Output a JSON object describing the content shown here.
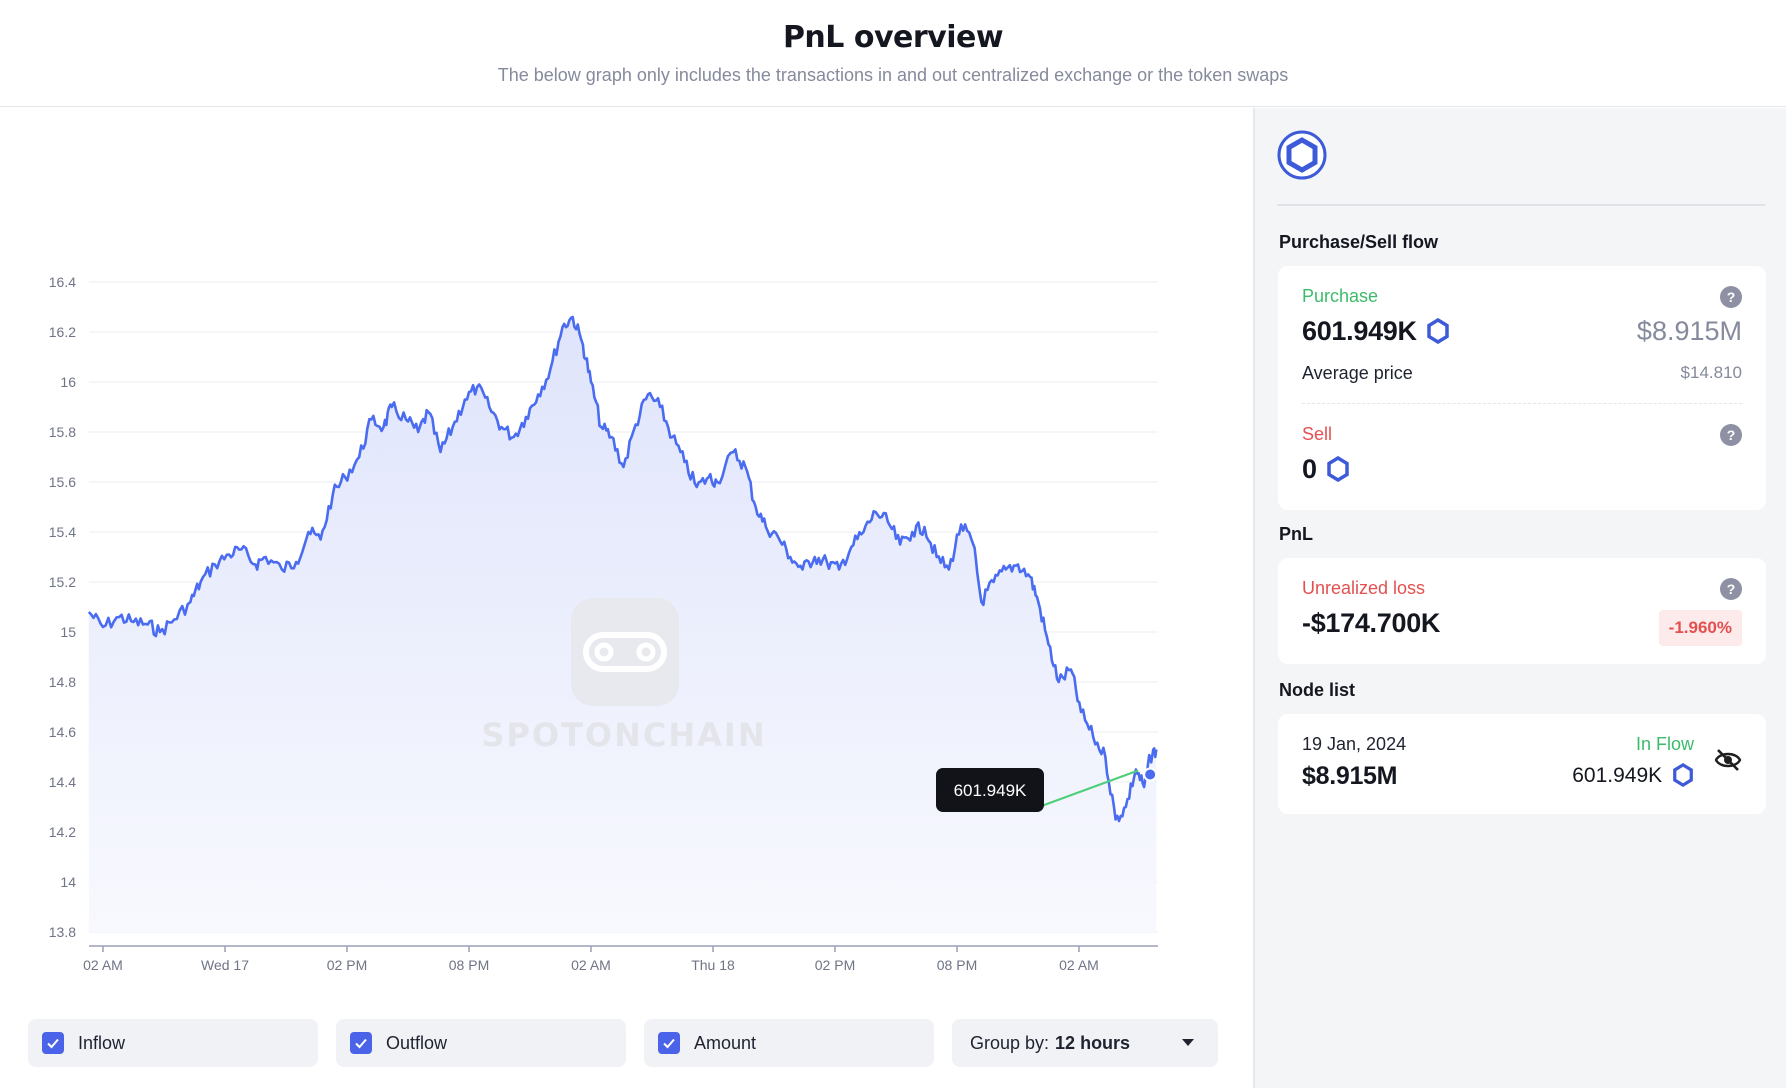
{
  "header": {
    "title": "PnL overview",
    "subtitle": "The below graph only includes the transactions in and out centralized exchange or the token swaps"
  },
  "chart_data": {
    "type": "area",
    "watermark": "SPOTONCHAIN",
    "y_ticks": [
      "16.4",
      "16.2",
      "16",
      "15.8",
      "15.6",
      "15.4",
      "15.2",
      "15",
      "14.8",
      "14.6",
      "14.4",
      "14.2",
      "14",
      "13.8"
    ],
    "ylim": [
      13.8,
      16.4
    ],
    "x_ticks": [
      "02 AM",
      "Wed 17",
      "02 PM",
      "08 PM",
      "02 AM",
      "Thu 18",
      "02 PM",
      "08 PM",
      "02 AM"
    ],
    "x_hours": [
      0,
      6,
      12,
      18,
      24,
      30,
      36,
      42,
      48
    ],
    "xlim": [
      -0.7,
      51.8
    ],
    "series": [
      {
        "points": [
          [
            -0.7,
            15.08
          ],
          [
            0.0,
            15.02
          ],
          [
            0.8,
            15.06
          ],
          [
            1.5,
            15.04
          ],
          [
            2.2,
            15.03
          ],
          [
            2.8,
            15.0
          ],
          [
            3.5,
            15.05
          ],
          [
            4.3,
            15.12
          ],
          [
            4.8,
            15.2
          ],
          [
            5.5,
            15.27
          ],
          [
            6.2,
            15.31
          ],
          [
            6.8,
            15.33
          ],
          [
            7.5,
            15.27
          ],
          [
            8.0,
            15.3
          ],
          [
            8.8,
            15.25
          ],
          [
            9.5,
            15.28
          ],
          [
            10.1,
            15.4
          ],
          [
            10.7,
            15.37
          ],
          [
            11.3,
            15.55
          ],
          [
            11.9,
            15.62
          ],
          [
            12.6,
            15.7
          ],
          [
            13.2,
            15.85
          ],
          [
            13.8,
            15.82
          ],
          [
            14.2,
            15.9
          ],
          [
            14.9,
            15.85
          ],
          [
            15.5,
            15.8
          ],
          [
            16.0,
            15.88
          ],
          [
            16.6,
            15.72
          ],
          [
            17.2,
            15.82
          ],
          [
            17.8,
            15.93
          ],
          [
            18.4,
            15.98
          ],
          [
            19.0,
            15.9
          ],
          [
            19.6,
            15.82
          ],
          [
            20.2,
            15.78
          ],
          [
            20.8,
            15.86
          ],
          [
            21.4,
            15.95
          ],
          [
            22.0,
            16.05
          ],
          [
            22.6,
            16.22
          ],
          [
            23.1,
            16.26
          ],
          [
            23.6,
            16.15
          ],
          [
            24.0,
            16.0
          ],
          [
            24.5,
            15.82
          ],
          [
            25.0,
            15.78
          ],
          [
            25.6,
            15.66
          ],
          [
            26.2,
            15.83
          ],
          [
            26.8,
            15.95
          ],
          [
            27.4,
            15.9
          ],
          [
            28.0,
            15.78
          ],
          [
            28.6,
            15.68
          ],
          [
            29.2,
            15.58
          ],
          [
            29.8,
            15.62
          ],
          [
            30.2,
            15.6
          ],
          [
            31.0,
            15.72
          ],
          [
            31.6,
            15.66
          ],
          [
            32.1,
            15.5
          ],
          [
            32.6,
            15.42
          ],
          [
            33.2,
            15.38
          ],
          [
            33.8,
            15.3
          ],
          [
            34.4,
            15.25
          ],
          [
            35.0,
            15.3
          ],
          [
            35.6,
            15.28
          ],
          [
            36.2,
            15.25
          ],
          [
            36.8,
            15.34
          ],
          [
            37.4,
            15.4
          ],
          [
            38.0,
            15.48
          ],
          [
            38.6,
            15.44
          ],
          [
            39.2,
            15.35
          ],
          [
            39.8,
            15.4
          ],
          [
            40.4,
            15.42
          ],
          [
            41.0,
            15.3
          ],
          [
            41.6,
            15.25
          ],
          [
            42.2,
            15.43
          ],
          [
            42.8,
            15.35
          ],
          [
            43.2,
            15.12
          ],
          [
            43.8,
            15.2
          ],
          [
            44.4,
            15.25
          ],
          [
            45.0,
            15.27
          ],
          [
            45.6,
            15.22
          ],
          [
            46.0,
            15.12
          ],
          [
            46.5,
            14.95
          ],
          [
            47.0,
            14.8
          ],
          [
            47.6,
            14.85
          ],
          [
            48.1,
            14.68
          ],
          [
            48.7,
            14.58
          ],
          [
            49.3,
            14.5
          ],
          [
            49.8,
            14.25
          ],
          [
            50.3,
            14.3
          ],
          [
            50.8,
            14.45
          ],
          [
            51.2,
            14.38
          ],
          [
            51.5,
            14.5
          ],
          [
            51.8,
            14.53
          ]
        ]
      }
    ],
    "marker": {
      "x": 51.5,
      "y": 14.43,
      "label": "601.949K"
    },
    "colors": {
      "line": "#4a6cf0",
      "marker_line": "#4fcf7a",
      "tooltip_bg": "#111318"
    }
  },
  "filters": {
    "inflow": "Inflow",
    "outflow": "Outflow",
    "amount": "Amount",
    "group_label": "Group by:",
    "group_value": "12 hours"
  },
  "sidebar": {
    "token_icon": "chainlink-hex-icon",
    "purchase_sell_title": "Purchase/Sell flow",
    "purchase_label": "Purchase",
    "purchase_amount": "601.949K",
    "purchase_usd": "$8.915M",
    "avg_price_label": "Average price",
    "avg_price_value": "$14.810",
    "sell_label": "Sell",
    "sell_amount": "0",
    "pnl_title": "PnL",
    "unrealized_label": "Unrealized loss",
    "unrealized_value": "-$174.700K",
    "unrealized_pct": "-1.960%",
    "node_list_title": "Node list",
    "node_date": "19 Jan, 2024",
    "node_usd": "$8.915M",
    "node_flow": "In Flow",
    "node_amount": "601.949K",
    "help_glyph": "?",
    "colors": {
      "green": "#3dbb6a",
      "red": "#e45050",
      "accent": "#3d5bd9"
    }
  }
}
